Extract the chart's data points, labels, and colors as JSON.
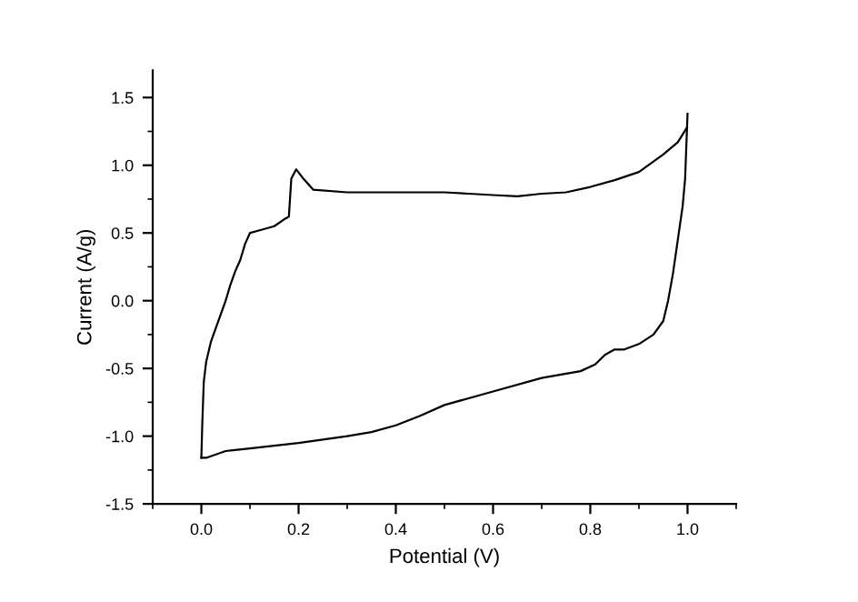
{
  "chart_data": {
    "type": "line",
    "xlabel": "Potential (V)",
    "ylabel": "Current (A/g)",
    "xlim": [
      -0.1,
      1.1
    ],
    "ylim": [
      -1.5,
      1.7
    ],
    "xticks": [
      {
        "value": 0,
        "label": "0.0"
      },
      {
        "value": 0.2,
        "label": "0.2"
      },
      {
        "value": 0.4,
        "label": "0.4"
      },
      {
        "value": 0.6,
        "label": "0.6"
      },
      {
        "value": 0.8,
        "label": "0.8"
      },
      {
        "value": 1,
        "label": "1.0"
      }
    ],
    "yticks": [
      {
        "value": -1.5,
        "label": "-1.5"
      },
      {
        "value": -1,
        "label": "-1.0"
      },
      {
        "value": -0.5,
        "label": "-0.5"
      },
      {
        "value": 0,
        "label": "0.0"
      },
      {
        "value": 0.5,
        "label": "0.5"
      },
      {
        "value": 1,
        "label": "1.0"
      },
      {
        "value": 1.5,
        "label": "1.5"
      }
    ],
    "grid": false,
    "legend": false,
    "marker": "none",
    "line_style": "solid",
    "series": [
      {
        "color": "#000000",
        "x": [
          0.0,
          0.002,
          0.005,
          0.01,
          0.02,
          0.03,
          0.04,
          0.05,
          0.06,
          0.07,
          0.08,
          0.09,
          0.1,
          0.12,
          0.15,
          0.17,
          0.18,
          0.185,
          0.195,
          0.21,
          0.23,
          0.3,
          0.4,
          0.5,
          0.55,
          0.6,
          0.65,
          0.7,
          0.75,
          0.8,
          0.85,
          0.9,
          0.95,
          0.98,
          0.999
        ],
        "values": [
          -1.16,
          -0.9,
          -0.6,
          -0.45,
          -0.3,
          -0.2,
          -0.1,
          0.0,
          0.12,
          0.22,
          0.3,
          0.42,
          0.5,
          0.52,
          0.55,
          0.6,
          0.62,
          0.9,
          0.97,
          0.9,
          0.82,
          0.8,
          0.8,
          0.8,
          0.79,
          0.78,
          0.77,
          0.79,
          0.8,
          0.84,
          0.89,
          0.95,
          1.08,
          1.17,
          1.28
        ]
      },
      {
        "color": "#000000",
        "x": [
          1.0,
          0.995,
          0.99,
          0.98,
          0.97,
          0.96,
          0.95,
          0.93,
          0.9,
          0.87,
          0.85,
          0.83,
          0.81,
          0.78,
          0.7,
          0.6,
          0.5,
          0.45,
          0.4,
          0.35,
          0.3,
          0.2,
          0.1,
          0.05,
          0.01,
          0.0
        ],
        "values": [
          1.38,
          0.9,
          0.7,
          0.45,
          0.2,
          0.0,
          -0.15,
          -0.25,
          -0.32,
          -0.36,
          -0.36,
          -0.4,
          -0.47,
          -0.52,
          -0.57,
          -0.67,
          -0.77,
          -0.85,
          -0.92,
          -0.97,
          -1.0,
          -1.05,
          -1.09,
          -1.11,
          -1.16,
          -1.16
        ]
      }
    ]
  }
}
